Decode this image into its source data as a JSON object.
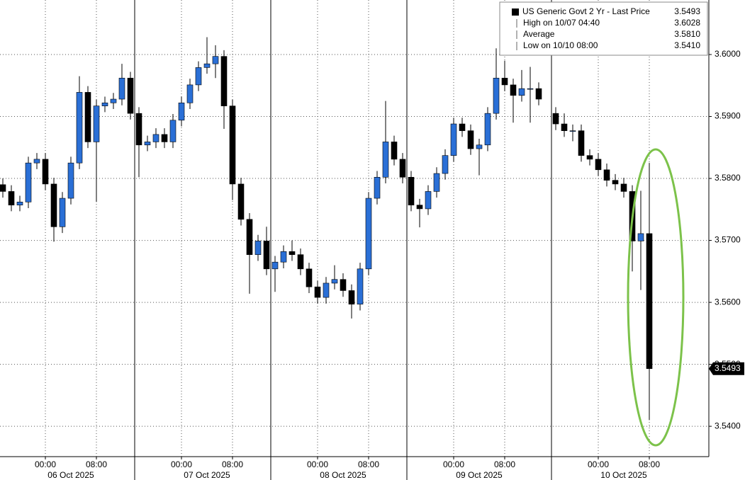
{
  "chart_data": {
    "type": "candlestick",
    "categories": [
      null,
      null,
      null,
      null,
      null,
      "00:00",
      null,
      null,
      null,
      null,
      null,
      "08:00",
      null,
      null,
      null,
      null,
      null,
      null,
      null,
      null,
      null,
      "00:00",
      null,
      null,
      null,
      null,
      null,
      "08:00",
      null,
      null,
      null,
      null,
      null,
      null,
      null,
      null,
      null,
      "00:00",
      null,
      null,
      null,
      null,
      null,
      "08:00",
      null,
      null,
      null,
      null,
      null,
      null,
      null,
      null,
      null,
      "00:00",
      null,
      null,
      null,
      null,
      null,
      "08:00",
      null,
      null,
      null,
      null,
      null,
      null,
      null,
      null,
      null,
      null,
      "00:00",
      null,
      null,
      null,
      null,
      null,
      "08:00",
      null,
      null,
      null,
      null,
      null,
      null
    ],
    "day_labels": [
      "06 Oct 2025",
      "07 Oct 2025",
      "08 Oct 2025",
      "09 Oct 2025",
      "10 Oct 2025"
    ],
    "open": [
      3.579,
      3.5779,
      3.5757,
      3.5762,
      3.5825,
      3.5831,
      3.5791,
      3.5722,
      3.5768,
      3.5825,
      3.5939,
      3.5859,
      3.5917,
      3.5922,
      3.5928,
      3.5962,
      3.5905,
      3.5854,
      3.5859,
      3.5871,
      3.5859,
      3.5894,
      3.5922,
      3.5951,
      3.5979,
      3.5985,
      3.5997,
      3.5917,
      3.5791,
      3.5734,
      3.5677,
      3.5699,
      3.5654,
      3.5665,
      3.5682,
      3.5677,
      3.5654,
      3.5625,
      3.5608,
      3.5631,
      3.5637,
      3.5619,
      3.5597,
      3.5654,
      3.5768,
      3.5802,
      3.5859,
      3.5831,
      3.5802,
      3.5757,
      3.5751,
      3.5779,
      3.5808,
      3.5837,
      3.5888,
      3.5877,
      3.5848,
      3.5854,
      3.5905,
      3.5962,
      3.5951,
      3.5934,
      3.5945,
      3.5945,
      null,
      3.5905,
      3.5888,
      3.5877,
      3.5877,
      3.5837,
      3.5831,
      3.5814,
      3.5797,
      3.5791,
      3.5779,
      3.5699,
      3.5711,
      null,
      null,
      null,
      null,
      null,
      null
    ],
    "high": [
      3.58,
      3.5789,
      3.5772,
      3.5835,
      3.5841,
      3.5841,
      3.5801,
      3.5778,
      3.5835,
      3.5965,
      3.5949,
      3.5927,
      3.5932,
      3.5938,
      3.5985,
      3.5972,
      3.5915,
      3.5869,
      3.5881,
      3.5881,
      3.5904,
      3.5932,
      3.5961,
      3.5989,
      3.6028,
      3.6015,
      3.6007,
      3.5927,
      3.5801,
      3.5744,
      3.5709,
      3.5722,
      3.5675,
      3.5692,
      3.57,
      3.5687,
      3.5664,
      3.5635,
      3.5641,
      3.566,
      3.5647,
      3.5629,
      3.5664,
      3.5778,
      3.5812,
      3.5925,
      3.5869,
      3.5841,
      3.5812,
      3.5767,
      3.5789,
      3.5818,
      3.5847,
      3.5898,
      3.5898,
      3.5887,
      3.5864,
      3.5915,
      3.601,
      3.599,
      3.5961,
      3.5975,
      3.598,
      3.5955,
      null,
      3.5915,
      3.5905,
      3.5887,
      3.5887,
      3.5847,
      3.5841,
      3.5824,
      3.5807,
      3.5801,
      3.5789,
      3.578,
      3.5825,
      null,
      null,
      null,
      null,
      null,
      null
    ],
    "low": [
      3.5769,
      3.5747,
      3.5747,
      3.5752,
      3.5815,
      3.5781,
      3.5698,
      3.5712,
      3.5758,
      3.5815,
      3.5849,
      3.5762,
      3.5907,
      3.5912,
      3.5918,
      3.5895,
      3.5802,
      3.5844,
      3.5849,
      3.5849,
      3.5849,
      3.5884,
      3.5912,
      3.5941,
      3.5969,
      3.5962,
      3.588,
      3.5765,
      3.5724,
      3.5614,
      3.5667,
      3.5644,
      3.5617,
      3.5655,
      3.5667,
      3.5644,
      3.5615,
      3.5598,
      3.5598,
      3.5621,
      3.5609,
      3.5574,
      3.5587,
      3.5644,
      3.5758,
      3.5792,
      3.5821,
      3.5792,
      3.5747,
      3.5721,
      3.5741,
      3.5769,
      3.5798,
      3.5827,
      3.5867,
      3.5838,
      3.5805,
      3.5844,
      3.5895,
      3.5941,
      3.589,
      3.5924,
      3.589,
      3.5918,
      null,
      3.5878,
      3.5867,
      3.586,
      3.5827,
      3.5821,
      3.5804,
      3.5787,
      3.5781,
      3.5769,
      3.565,
      3.562,
      3.541,
      null,
      null,
      null,
      null,
      null,
      null
    ],
    "close": [
      3.5779,
      3.5757,
      3.5762,
      3.5825,
      3.5831,
      3.5791,
      3.5722,
      3.5768,
      3.5825,
      3.5939,
      3.5859,
      3.5917,
      3.5922,
      3.5928,
      3.5962,
      3.5905,
      3.5854,
      3.5859,
      3.5871,
      3.5859,
      3.5894,
      3.5922,
      3.5951,
      3.5979,
      3.5985,
      3.5997,
      3.5917,
      3.5791,
      3.5734,
      3.5677,
      3.5699,
      3.5654,
      3.5665,
      3.5682,
      3.5677,
      3.5654,
      3.5625,
      3.5608,
      3.5631,
      3.5637,
      3.5619,
      3.5597,
      3.5654,
      3.5768,
      3.5802,
      3.5859,
      3.5831,
      3.5802,
      3.5757,
      3.5751,
      3.5779,
      3.5808,
      3.5837,
      3.5888,
      3.5877,
      3.5848,
      3.5854,
      3.5905,
      3.5962,
      3.5951,
      3.5934,
      3.5945,
      3.5945,
      3.5928,
      null,
      3.5888,
      3.5877,
      3.5877,
      3.5837,
      3.5831,
      3.5814,
      3.5797,
      3.5791,
      3.5779,
      3.5699,
      3.5711,
      3.5493,
      null,
      null,
      null,
      null,
      null,
      null
    ],
    "up_color": "#2a6fd6",
    "down_color": "#000000",
    "ylim": [
      3.5351,
      3.6088
    ],
    "yticks": [
      {
        "value": 3.54,
        "label": "3.5400"
      },
      {
        "value": 3.55,
        "label": "3.5500"
      },
      {
        "value": 3.56,
        "label": "3.5600"
      },
      {
        "value": 3.57,
        "label": "3.5700"
      },
      {
        "value": 3.58,
        "label": "3.5800"
      },
      {
        "value": 3.59,
        "label": "3.5900"
      },
      {
        "value": 3.6,
        "label": "3.6000"
      }
    ],
    "grid": true,
    "legend": [
      {
        "label": "US Generic Govt 2 Yr - Last Price",
        "value": 3.5493
      },
      {
        "label": "High on 10/07 04:40",
        "value": 3.6028
      },
      {
        "label": "Average",
        "value": 3.581,
        "value_label": "3.5810"
      },
      {
        "label": "Low on 10/10 08:00",
        "value": 3.541,
        "value_label": "3.5410"
      }
    ]
  }
}
